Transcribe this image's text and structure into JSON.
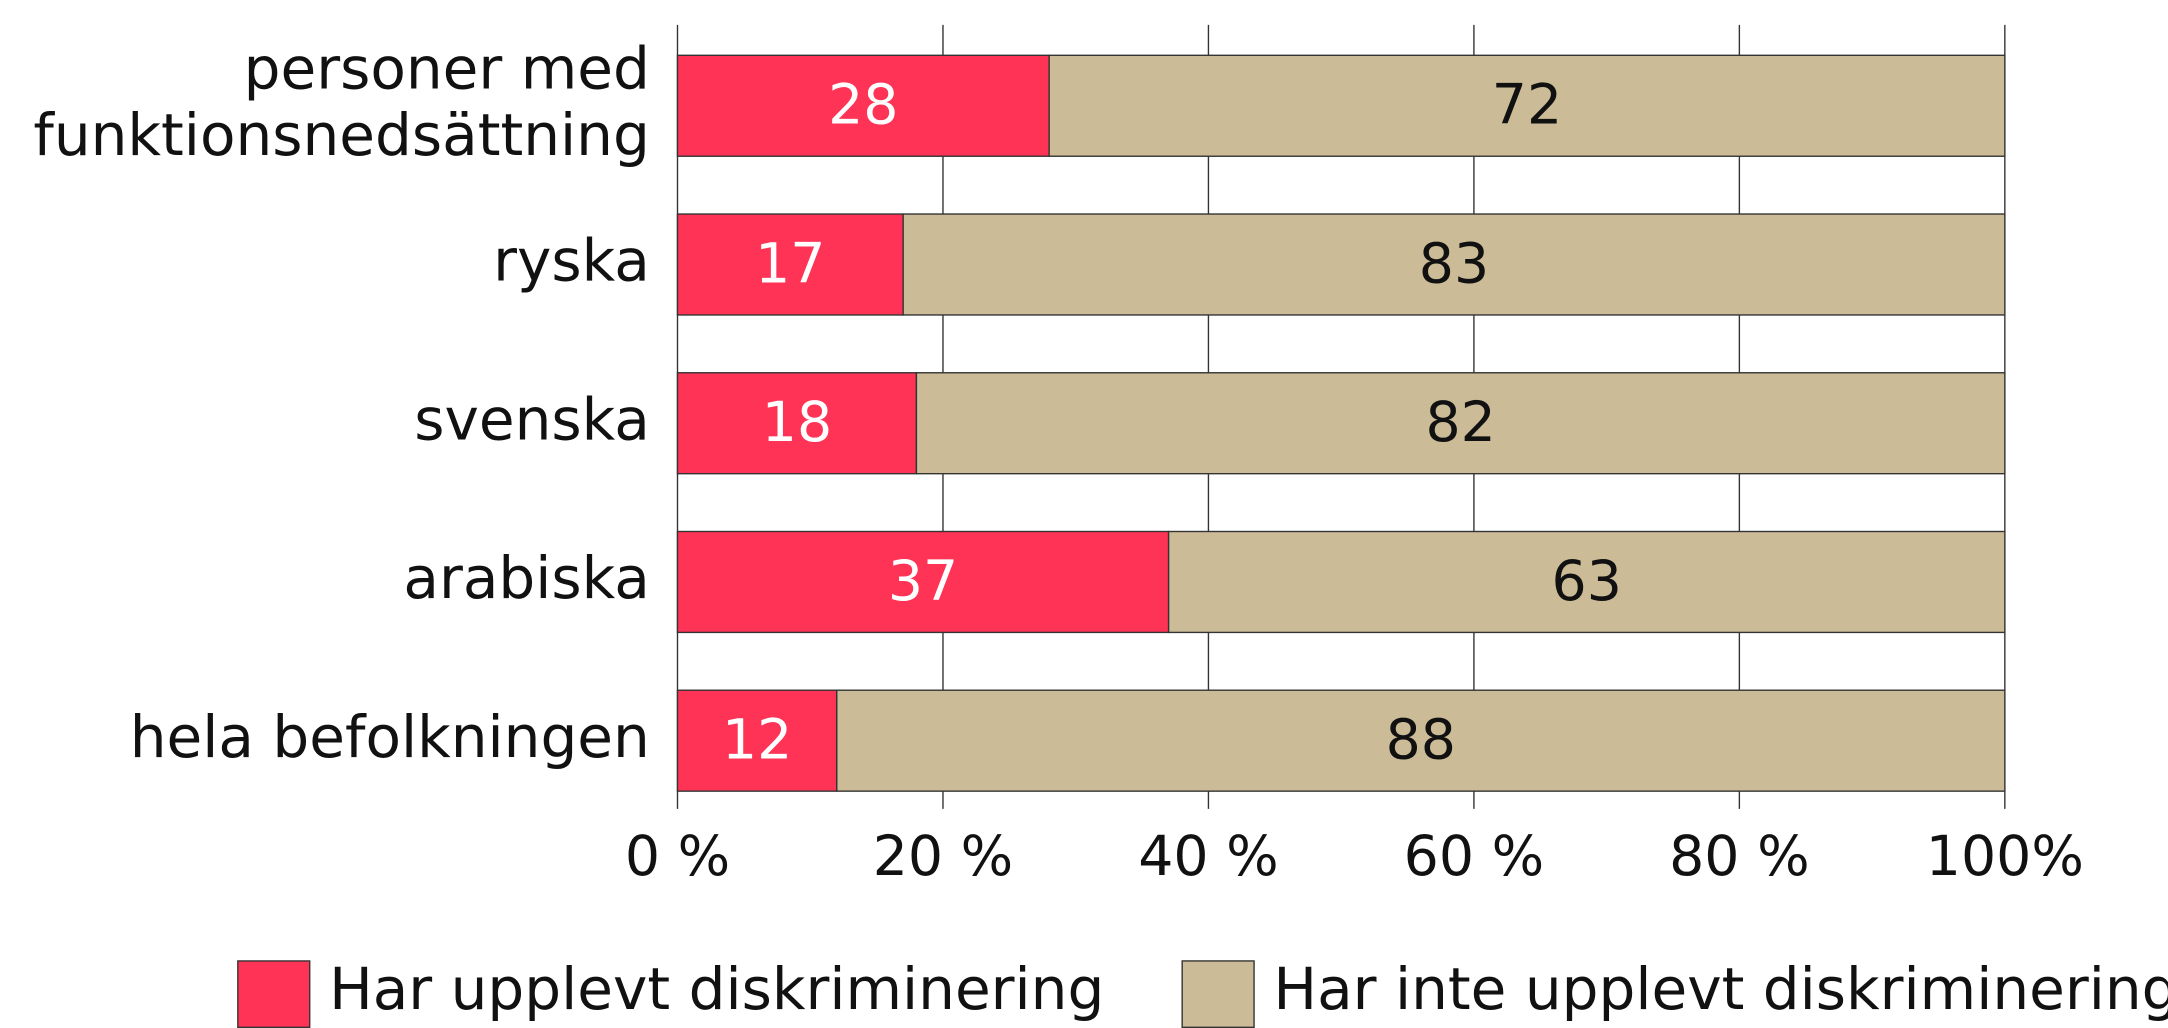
{
  "chart_data": {
    "type": "stacked_barh",
    "categories": [
      "personer med\nfunktionsnedsättning",
      "ryska",
      "svenska",
      "arabiska",
      "hela befolkningen"
    ],
    "series": [
      {
        "name": "Har upplevt diskriminering",
        "color": "#ff3355",
        "values": [
          28,
          17,
          18,
          37,
          12
        ]
      },
      {
        "name": "Har inte upplevt diskriminering",
        "color": "#cbbb96",
        "values": [
          72,
          83,
          82,
          63,
          88
        ]
      }
    ],
    "xlim": [
      0,
      100
    ],
    "xticks": [
      {
        "value": 0,
        "label": "0 %"
      },
      {
        "value": 20,
        "label": "20 %"
      },
      {
        "value": 40,
        "label": "40 %"
      },
      {
        "value": 60,
        "label": "60 %"
      },
      {
        "value": 80,
        "label": "80 %"
      },
      {
        "value": 100,
        "label": "100%"
      }
    ],
    "grid": true,
    "legend": "bottom"
  }
}
